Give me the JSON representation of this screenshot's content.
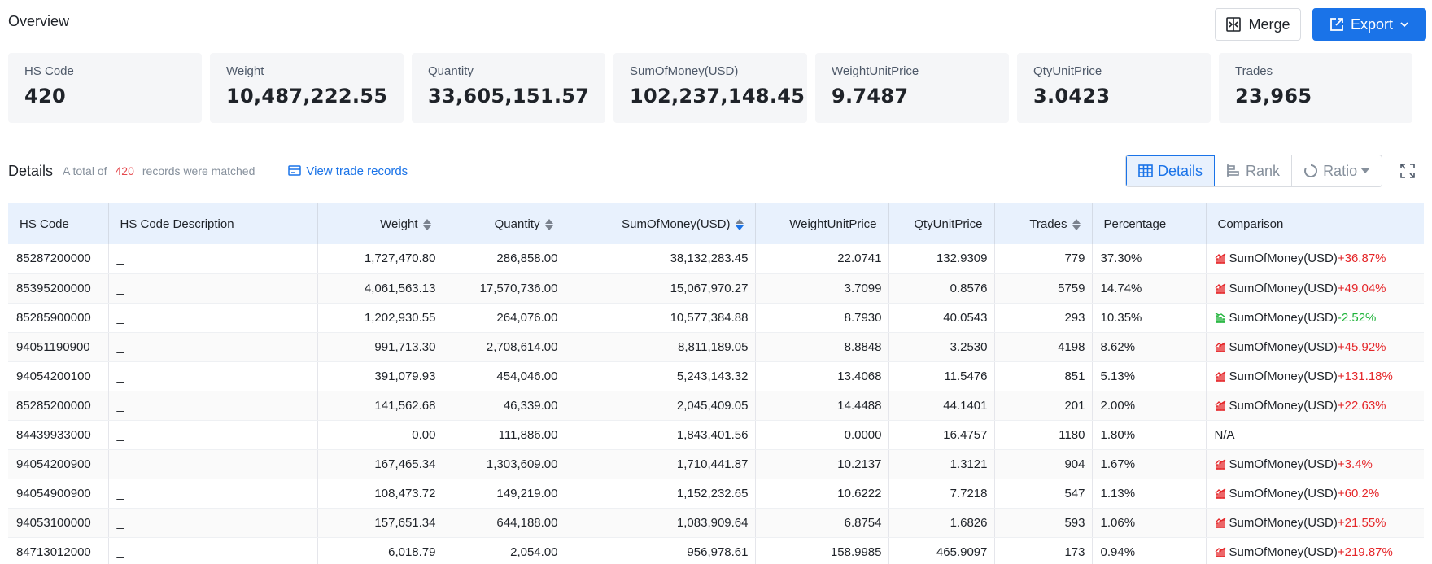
{
  "header": {
    "title": "Overview"
  },
  "toolbar": {
    "merge_label": "Merge",
    "export_label": "Export"
  },
  "cards": [
    {
      "label": "HS Code",
      "value": "420"
    },
    {
      "label": "Weight",
      "value": "10,487,222.55"
    },
    {
      "label": "Quantity",
      "value": "33,605,151.57"
    },
    {
      "label": "SumOfMoney(USD)",
      "value": "102,237,148.45"
    },
    {
      "label": "WeightUnitPrice",
      "value": "9.7487"
    },
    {
      "label": "QtyUnitPrice",
      "value": "3.0423"
    },
    {
      "label": "Trades",
      "value": "23,965"
    }
  ],
  "details": {
    "title": "Details",
    "prefix": "A total of",
    "count": "420",
    "suffix": "records were matched",
    "view_link": "View trade records",
    "tabs": [
      "Details",
      "Rank",
      "Ratio"
    ]
  },
  "table": {
    "columns": [
      "HS Code",
      "HS Code Description",
      "Weight",
      "Quantity",
      "SumOfMoney(USD)",
      "WeightUnitPrice",
      "QtyUnitPrice",
      "Trades",
      "Percentage",
      "Comparison"
    ],
    "rows": [
      {
        "code": "85287200000",
        "desc": "_",
        "weight": "1,727,470.80",
        "qty": "286,858.00",
        "money": "38,132,283.45",
        "wup": "22.0741",
        "qup": "132.9309",
        "trades": "779",
        "pct": "37.30%",
        "cmp_label": "SumOfMoney(USD)",
        "cmp_val": "+36.87%",
        "dir": "up"
      },
      {
        "code": "85395200000",
        "desc": "_",
        "weight": "4,061,563.13",
        "qty": "17,570,736.00",
        "money": "15,067,970.27",
        "wup": "3.7099",
        "qup": "0.8576",
        "trades": "5759",
        "pct": "14.74%",
        "cmp_label": "SumOfMoney(USD)",
        "cmp_val": "+49.04%",
        "dir": "up"
      },
      {
        "code": "85285900000",
        "desc": "_",
        "weight": "1,202,930.55",
        "qty": "264,076.00",
        "money": "10,577,384.88",
        "wup": "8.7930",
        "qup": "40.0543",
        "trades": "293",
        "pct": "10.35%",
        "cmp_label": "SumOfMoney(USD)",
        "cmp_val": "-2.52%",
        "dir": "down"
      },
      {
        "code": "94051190900",
        "desc": "_",
        "weight": "991,713.30",
        "qty": "2,708,614.00",
        "money": "8,811,189.05",
        "wup": "8.8848",
        "qup": "3.2530",
        "trades": "4198",
        "pct": "8.62%",
        "cmp_label": "SumOfMoney(USD)",
        "cmp_val": "+45.92%",
        "dir": "up"
      },
      {
        "code": "94054200100",
        "desc": "_",
        "weight": "391,079.93",
        "qty": "454,046.00",
        "money": "5,243,143.32",
        "wup": "13.4068",
        "qup": "11.5476",
        "trades": "851",
        "pct": "5.13%",
        "cmp_label": "SumOfMoney(USD)",
        "cmp_val": "+131.18%",
        "dir": "up"
      },
      {
        "code": "85285200000",
        "desc": "_",
        "weight": "141,562.68",
        "qty": "46,339.00",
        "money": "2,045,409.05",
        "wup": "14.4488",
        "qup": "44.1401",
        "trades": "201",
        "pct": "2.00%",
        "cmp_label": "SumOfMoney(USD)",
        "cmp_val": "+22.63%",
        "dir": "up"
      },
      {
        "code": "84439933000",
        "desc": "_",
        "weight": "0.00",
        "qty": "111,886.00",
        "money": "1,843,401.56",
        "wup": "0.0000",
        "qup": "16.4757",
        "trades": "1180",
        "pct": "1.80%",
        "cmp_label": "N/A",
        "cmp_val": "",
        "dir": "none"
      },
      {
        "code": "94054200900",
        "desc": "_",
        "weight": "167,465.34",
        "qty": "1,303,609.00",
        "money": "1,710,441.87",
        "wup": "10.2137",
        "qup": "1.3121",
        "trades": "904",
        "pct": "1.67%",
        "cmp_label": "SumOfMoney(USD)",
        "cmp_val": "+3.4%",
        "dir": "up"
      },
      {
        "code": "94054900900",
        "desc": "_",
        "weight": "108,473.72",
        "qty": "149,219.00",
        "money": "1,152,232.65",
        "wup": "10.6222",
        "qup": "7.7218",
        "trades": "547",
        "pct": "1.13%",
        "cmp_label": "SumOfMoney(USD)",
        "cmp_val": "+60.2%",
        "dir": "up"
      },
      {
        "code": "94053100000",
        "desc": "_",
        "weight": "157,651.34",
        "qty": "644,188.00",
        "money": "1,083,909.64",
        "wup": "6.8754",
        "qup": "1.6826",
        "trades": "593",
        "pct": "1.06%",
        "cmp_label": "SumOfMoney(USD)",
        "cmp_val": "+21.55%",
        "dir": "up"
      },
      {
        "code": "84713012000",
        "desc": "_",
        "weight": "6,018.79",
        "qty": "2,054.00",
        "money": "956,978.61",
        "wup": "158.9985",
        "qup": "465.9097",
        "trades": "173",
        "pct": "0.94%",
        "cmp_label": "SumOfMoney(USD)",
        "cmp_val": "+219.87%",
        "dir": "up"
      }
    ]
  },
  "colors": {
    "accent": "#1a73e8",
    "up": "#e5272a",
    "down": "#1fb33a",
    "count": "#e5484d"
  }
}
